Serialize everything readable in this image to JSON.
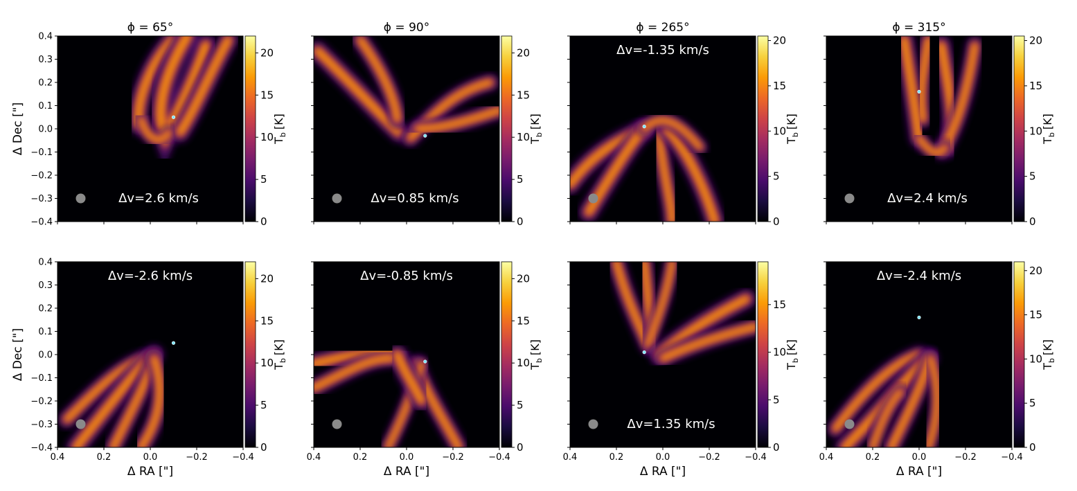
{
  "figure": {
    "xlabel": "Δ RA [\"]",
    "ylabel": "Δ Dec [\"]",
    "colorbar_label_main": "T",
    "colorbar_label_sub": "b",
    "colorbar_label_unit": "[K]",
    "colormap": "inferno",
    "colors": {
      "inferno": [
        "#000004",
        "#1b0c41",
        "#4a0c6b",
        "#781c6d",
        "#a52c60",
        "#cf4446",
        "#ed6925",
        "#fb9b06",
        "#f7d13d",
        "#fcffa4"
      ],
      "star_marker": "#7fe6ff",
      "beam": "#8a8a8a",
      "overlay_text": "#ffffff"
    },
    "star_marker_symbol": "cyan-dot",
    "beam_symbol": "grey-circle"
  },
  "chart_data": [
    {
      "type": "heatmap",
      "title": "ϕ = 65°",
      "row": 0,
      "col": 0,
      "dv_label": "Δv=2.6 km/s",
      "dv_position": "bottom-right",
      "beam": true,
      "star": [
        -0.1,
        0.05
      ],
      "cbar_ticks": [
        0,
        5,
        10,
        15,
        20
      ],
      "cbar_max": 22,
      "xlim": [
        0.4,
        -0.4
      ],
      "ylim": [
        -0.4,
        0.4
      ]
    },
    {
      "type": "heatmap",
      "title": "ϕ = 90°",
      "row": 0,
      "col": 1,
      "dv_label": "Δv=0.85 km/s",
      "dv_position": "bottom-right",
      "beam": true,
      "star": [
        -0.08,
        -0.03
      ],
      "cbar_ticks": [
        0,
        5,
        10,
        15,
        20
      ],
      "cbar_max": 22,
      "xlim": [
        0.4,
        -0.4
      ],
      "ylim": [
        -0.4,
        0.4
      ]
    },
    {
      "type": "heatmap",
      "title": "ϕ = 265°",
      "row": 0,
      "col": 2,
      "dv_label": "Δv=-1.35 km/s",
      "dv_position": "top",
      "beam": true,
      "star": [
        0.08,
        0.01
      ],
      "cbar_ticks": [
        0,
        5,
        10,
        15,
        20
      ],
      "cbar_max": 20.5,
      "xlim": [
        0.4,
        -0.4
      ],
      "ylim": [
        -0.4,
        0.4
      ]
    },
    {
      "type": "heatmap",
      "title": "ϕ = 315°",
      "row": 0,
      "col": 3,
      "dv_label": "Δv=2.4 km/s",
      "dv_position": "bottom-right",
      "beam": true,
      "star": [
        0.0,
        0.16
      ],
      "cbar_ticks": [
        0,
        5,
        10,
        15,
        20
      ],
      "cbar_max": 20.5,
      "xlim": [
        0.4,
        -0.4
      ],
      "ylim": [
        -0.4,
        0.4
      ]
    },
    {
      "type": "heatmap",
      "title": "",
      "row": 1,
      "col": 0,
      "dv_label": "Δv=-2.6 km/s",
      "dv_position": "top",
      "beam": true,
      "star": [
        -0.1,
        0.05
      ],
      "cbar_ticks": [
        0,
        5,
        10,
        15,
        20
      ],
      "cbar_max": 22,
      "xlim": [
        0.4,
        -0.4
      ],
      "ylim": [
        -0.4,
        0.4
      ]
    },
    {
      "type": "heatmap",
      "title": "",
      "row": 1,
      "col": 1,
      "dv_label": "Δv=-0.85 km/s",
      "dv_position": "top",
      "beam": true,
      "star": [
        -0.08,
        -0.03
      ],
      "cbar_ticks": [
        0,
        5,
        10,
        15,
        20
      ],
      "cbar_max": 22,
      "xlim": [
        0.4,
        -0.4
      ],
      "ylim": [
        -0.4,
        0.4
      ]
    },
    {
      "type": "heatmap",
      "title": "",
      "row": 1,
      "col": 2,
      "dv_label": "Δv=1.35 km/s",
      "dv_position": "bottom-right",
      "beam": true,
      "star": [
        0.08,
        0.01
      ],
      "cbar_ticks": [
        0,
        5,
        10,
        15
      ],
      "cbar_max": 19.5,
      "xlim": [
        0.4,
        -0.4
      ],
      "ylim": [
        -0.4,
        0.4
      ]
    },
    {
      "type": "heatmap",
      "title": "",
      "row": 1,
      "col": 3,
      "dv_label": "Δv=-2.4 km/s",
      "dv_position": "top",
      "beam": true,
      "star": [
        0.0,
        0.16
      ],
      "cbar_ticks": [
        0,
        5,
        10,
        15,
        20
      ],
      "cbar_max": 21,
      "xlim": [
        0.4,
        -0.4
      ],
      "ylim": [
        -0.4,
        0.4
      ]
    }
  ],
  "axis_ticks": {
    "x": [
      "0.4",
      "0.2",
      "0.0",
      "−0.2",
      "−0.4"
    ],
    "y": [
      "0.4",
      "0.3",
      "0.2",
      "0.1",
      "0.0",
      "−0.1",
      "−0.2",
      "−0.3",
      "−0.4"
    ]
  }
}
